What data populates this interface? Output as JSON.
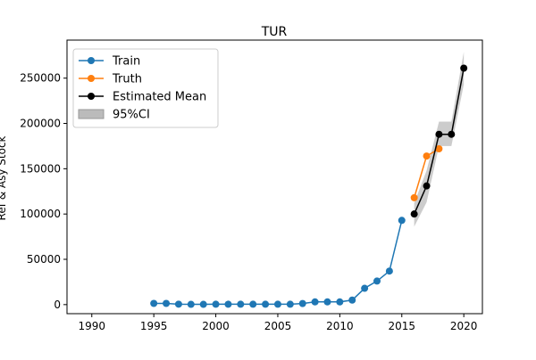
{
  "chart_data": {
    "type": "line",
    "title": "TUR",
    "xlabel": "",
    "ylabel": "Ref & Asy Stock",
    "xlim": [
      1988,
      2021.5
    ],
    "ylim": [
      -10000,
      292000
    ],
    "xticks": [
      1990,
      1995,
      2000,
      2005,
      2010,
      2015,
      2020
    ],
    "xtick_labels": [
      "1990",
      "1995",
      "2000",
      "2005",
      "2010",
      "2015",
      "2020"
    ],
    "yticks": [
      0,
      50000,
      100000,
      150000,
      200000,
      250000
    ],
    "ytick_labels": [
      "0",
      "50000",
      "100000",
      "150000",
      "200000",
      "250000"
    ],
    "grid": false,
    "legend_position": "top-left",
    "legend": [
      {
        "key": "train",
        "label": "Train"
      },
      {
        "key": "truth",
        "label": "Truth"
      },
      {
        "key": "mean",
        "label": "Estimated Mean"
      },
      {
        "key": "ci",
        "label": "95%CI"
      }
    ],
    "series": [
      {
        "key": "train",
        "name": "Train",
        "color": "#1f77b4",
        "x": [
          1995,
          1996,
          1997,
          1998,
          1999,
          2000,
          2001,
          2002,
          2003,
          2004,
          2005,
          2006,
          2007,
          2008,
          2009,
          2010,
          2011,
          2012,
          2013,
          2014,
          2015
        ],
        "y": [
          1300,
          1300,
          500,
          300,
          300,
          400,
          400,
          400,
          400,
          400,
          400,
          400,
          1200,
          3000,
          3000,
          3000,
          5000,
          18000,
          26000,
          37000,
          93000
        ]
      },
      {
        "key": "truth",
        "name": "Truth",
        "color": "#ff7f0e",
        "x": [
          2016,
          2017,
          2018
        ],
        "y": [
          118000,
          164000,
          172000
        ]
      },
      {
        "key": "mean",
        "name": "Estimated Mean",
        "color": "#000000",
        "x": [
          2016,
          2017,
          2018,
          2019,
          2020
        ],
        "y": [
          100000,
          131000,
          188000,
          188000,
          261000
        ]
      }
    ],
    "ci": {
      "name": "95%CI",
      "color": "#bbbbbb",
      "x": [
        2016,
        2017,
        2018,
        2019,
        2020
      ],
      "lower": [
        86000,
        113000,
        175000,
        175000,
        243000
      ],
      "upper": [
        112000,
        148000,
        202000,
        202000,
        279000
      ]
    }
  }
}
